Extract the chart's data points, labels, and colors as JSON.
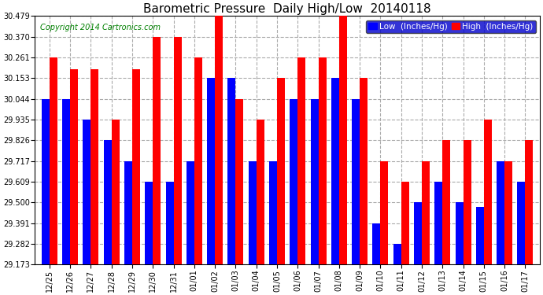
{
  "title": "Barometric Pressure  Daily High/Low  20140118",
  "copyright": "Copyright 2014 Cartronics.com",
  "legend_low": "Low  (Inches/Hg)",
  "legend_high": "High  (Inches/Hg)",
  "categories": [
    "12/25",
    "12/26",
    "12/27",
    "12/28",
    "12/29",
    "12/30",
    "12/31",
    "01/01",
    "01/02",
    "01/03",
    "01/04",
    "01/05",
    "01/06",
    "01/07",
    "01/08",
    "01/09",
    "01/10",
    "01/11",
    "01/12",
    "01/13",
    "01/14",
    "01/15",
    "01/16",
    "01/17"
  ],
  "low_values": [
    30.044,
    30.044,
    29.935,
    29.826,
    29.717,
    29.609,
    29.609,
    29.717,
    30.153,
    30.153,
    29.717,
    29.717,
    30.044,
    30.044,
    30.153,
    30.044,
    29.391,
    29.282,
    29.5,
    29.609,
    29.5,
    29.478,
    29.717,
    29.609
  ],
  "high_values": [
    30.261,
    30.2,
    30.2,
    29.935,
    30.2,
    30.37,
    30.37,
    30.261,
    30.479,
    30.044,
    29.935,
    30.153,
    30.261,
    30.261,
    30.479,
    30.153,
    29.717,
    29.609,
    29.717,
    29.826,
    29.826,
    29.935,
    29.717,
    29.826
  ],
  "ylim_min": 29.173,
  "ylim_max": 30.479,
  "yticks": [
    29.173,
    29.282,
    29.391,
    29.5,
    29.609,
    29.717,
    29.826,
    29.935,
    30.044,
    30.153,
    30.261,
    30.37,
    30.479
  ],
  "bar_width": 0.38,
  "low_color": "#0000ff",
  "high_color": "#ff0000",
  "bg_color": "#ffffff",
  "title_fontsize": 11,
  "copyright_fontsize": 7,
  "legend_fontsize": 7.5,
  "tick_fontsize": 7,
  "xlabel_fontsize": 7
}
